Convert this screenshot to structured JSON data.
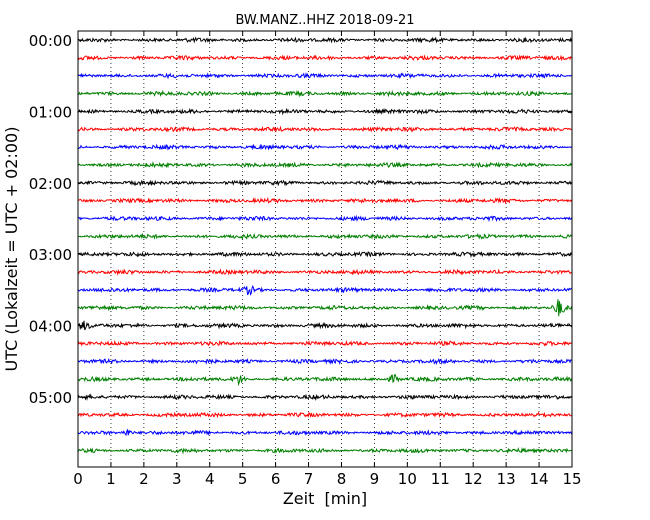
{
  "chart_data": {
    "type": "line",
    "title": "BW.MANZ..HHZ 2018-09-21",
    "xlabel": "Zeit  [min]",
    "ylabel": "UTC (Lokalzeit = UTC + 02:00)",
    "xlim": [
      0,
      15
    ],
    "x_ticks": [
      "0",
      "1",
      "2",
      "3",
      "4",
      "5",
      "6",
      "7",
      "8",
      "9",
      "10",
      "11",
      "12",
      "13",
      "14",
      "15"
    ],
    "y_tick_labels": [
      "00:00",
      "01:00",
      "02:00",
      "03:00",
      "04:00",
      "05:00"
    ],
    "trace_interval_min": 15,
    "trace_count": 24,
    "grid": "vertical-dotted",
    "trace_colors": [
      "#000000",
      "#ff0000",
      "#0000ff",
      "#007f00"
    ],
    "events": [
      {
        "trace": 15,
        "x_min": 14.6,
        "amplitude": 3.5
      },
      {
        "trace": 19,
        "x_min": 4.9,
        "amplitude": 1.8
      },
      {
        "trace": 19,
        "x_min": 9.6,
        "amplitude": 1.8
      },
      {
        "trace": 14,
        "x_min": 5.2,
        "amplitude": 1.4
      },
      {
        "trace": 22,
        "x_min": 1.5,
        "amplitude": 1.5
      },
      {
        "trace": 16,
        "x_min": 0.2,
        "amplitude": 1.4
      }
    ]
  }
}
